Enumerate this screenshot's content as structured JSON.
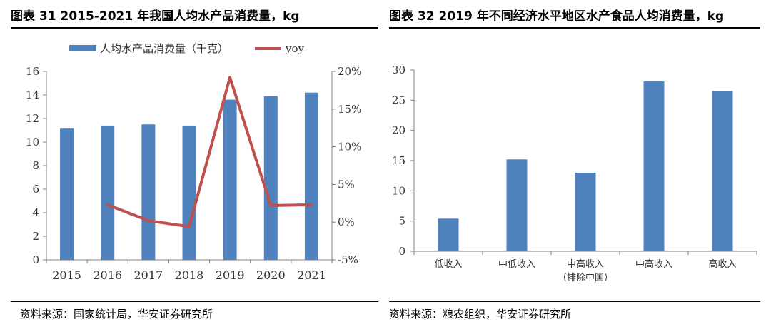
{
  "left_panel": {
    "title": "图表 31 2015-2021 年我国人均水产品消费量，kg",
    "source": "资料来源：国家统计局，华安证券研究所"
  },
  "right_panel": {
    "title": "图表 32 2019 年不同经济水平地区水产食品人均消费量，kg",
    "source": "资料来源：粮农组织，华安证券研究所"
  },
  "colors": {
    "bar": "#4f81bd",
    "line": "#c0504d",
    "axis": "#808080"
  },
  "chart_data": [
    {
      "type": "bar+line",
      "title": "图表 31 2015-2021 年我国人均水产品消费量，kg",
      "categories": [
        "2015",
        "2016",
        "2017",
        "2018",
        "2019",
        "2020",
        "2021"
      ],
      "series": [
        {
          "name": "人均水产品消费量（千克）",
          "type": "bar",
          "axis": "left",
          "values": [
            11.2,
            11.4,
            11.5,
            11.4,
            13.6,
            13.9,
            14.2
          ]
        },
        {
          "name": "yoy",
          "type": "line",
          "axis": "right",
          "values": [
            null,
            2.3,
            0.2,
            -0.6,
            19.2,
            2.2,
            2.3
          ]
        }
      ],
      "y_left": {
        "min": 0,
        "max": 16,
        "ticks": [
          "0",
          "2",
          "4",
          "6",
          "8",
          "10",
          "12",
          "14",
          "16"
        ]
      },
      "y_right": {
        "min": -5,
        "max": 20,
        "ticks": [
          "-5%",
          "0%",
          "5%",
          "10%",
          "15%",
          "20%"
        ]
      },
      "legend": [
        "人均水产品消费量（千克）",
        "yoy"
      ],
      "legend_position": "top"
    },
    {
      "type": "bar",
      "title": "图表 32 2019 年不同经济水平地区水产食品人均消费量，kg",
      "categories": [
        "低收入",
        "中低收入",
        "中高收入\n（排除中国）",
        "中高收入",
        "高收入"
      ],
      "values": [
        5.4,
        15.2,
        13.0,
        28.1,
        26.5
      ],
      "ylim": [
        0,
        30
      ],
      "y_ticks": [
        "0",
        "5",
        "10",
        "15",
        "20",
        "25",
        "30"
      ]
    }
  ]
}
